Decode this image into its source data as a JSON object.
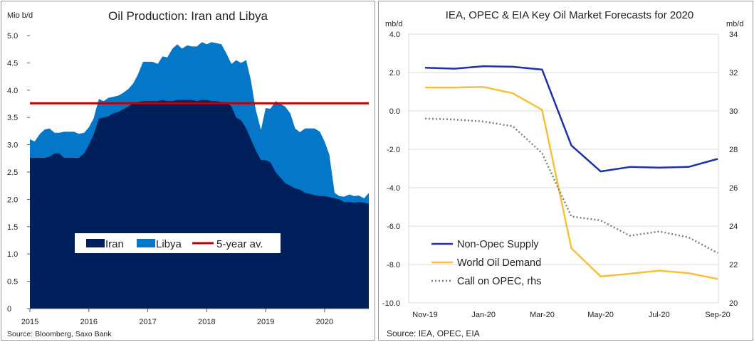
{
  "chart_data": [
    {
      "type": "area",
      "title": "Oil Production: Iran and Libya",
      "ylabel": "Mio b/d",
      "ylim": [
        0,
        5.0
      ],
      "yticks": [
        "0",
        "0.5",
        "1.0",
        "1.5",
        "2.0",
        "2.5",
        "3.0",
        "3.5",
        "4.0",
        "4.5",
        "5.0"
      ],
      "xlim": [
        2015,
        2020.75
      ],
      "xticks": [
        "2015",
        "2016",
        "2017",
        "2018",
        "2019",
        "2020"
      ],
      "stacked": true,
      "legend_position": "bottom-center",
      "x": [
        2015.0,
        2015.08,
        2015.17,
        2015.25,
        2015.33,
        2015.42,
        2015.5,
        2015.58,
        2015.67,
        2015.75,
        2015.83,
        2015.92,
        2016.0,
        2016.08,
        2016.17,
        2016.25,
        2016.33,
        2016.42,
        2016.5,
        2016.58,
        2016.67,
        2016.75,
        2016.83,
        2016.92,
        2017.0,
        2017.08,
        2017.17,
        2017.25,
        2017.33,
        2017.42,
        2017.5,
        2017.58,
        2017.67,
        2017.75,
        2017.83,
        2017.92,
        2018.0,
        2018.08,
        2018.17,
        2018.25,
        2018.33,
        2018.42,
        2018.5,
        2018.58,
        2018.67,
        2018.75,
        2018.83,
        2018.92,
        2019.0,
        2019.08,
        2019.17,
        2019.25,
        2019.33,
        2019.42,
        2019.5,
        2019.58,
        2019.67,
        2019.75,
        2019.83,
        2019.92,
        2020.0,
        2020.08,
        2020.17,
        2020.25,
        2020.33,
        2020.42,
        2020.5,
        2020.58,
        2020.67,
        2020.75
      ],
      "series": [
        {
          "name": "Iran",
          "values": [
            2.76,
            2.76,
            2.76,
            2.76,
            2.78,
            2.84,
            2.84,
            2.76,
            2.76,
            2.76,
            2.76,
            2.84,
            3.0,
            3.18,
            3.48,
            3.5,
            3.52,
            3.58,
            3.6,
            3.65,
            3.7,
            3.76,
            3.78,
            3.8,
            3.8,
            3.8,
            3.8,
            3.82,
            3.8,
            3.8,
            3.82,
            3.82,
            3.82,
            3.82,
            3.8,
            3.82,
            3.82,
            3.8,
            3.8,
            3.78,
            3.78,
            3.7,
            3.5,
            3.45,
            3.3,
            3.1,
            2.9,
            2.72,
            2.72,
            2.68,
            2.5,
            2.4,
            2.3,
            2.25,
            2.2,
            2.18,
            2.12,
            2.1,
            2.08,
            2.06,
            2.06,
            2.04,
            2.02,
            2.0,
            1.95,
            1.95,
            1.94,
            1.95,
            1.94,
            1.92
          ]
        },
        {
          "name": "Libya",
          "values": [
            0.34,
            0.3,
            0.44,
            0.52,
            0.52,
            0.38,
            0.38,
            0.48,
            0.48,
            0.48,
            0.44,
            0.38,
            0.32,
            0.3,
            0.36,
            0.3,
            0.34,
            0.3,
            0.3,
            0.3,
            0.32,
            0.36,
            0.5,
            0.72,
            0.72,
            0.72,
            0.68,
            0.8,
            0.8,
            0.96,
            1.02,
            0.94,
            1.0,
            0.98,
            1.0,
            1.06,
            1.02,
            1.08,
            1.06,
            1.06,
            0.9,
            0.78,
            1.05,
            1.05,
            1.25,
            1.08,
            0.75,
            0.55,
            0.95,
            0.98,
            1.3,
            1.35,
            1.4,
            1.32,
            1.1,
            1.05,
            1.18,
            1.2,
            1.22,
            1.18,
            1.0,
            0.78,
            0.1,
            0.06,
            0.1,
            0.14,
            0.12,
            0.12,
            0.08,
            0.2
          ]
        }
      ],
      "reference_line": {
        "name": "5-year av.",
        "value": 3.76,
        "color": "#c00000"
      },
      "colors": {
        "Iran": "#00205b",
        "Libya": "#0477c8"
      },
      "source": "Source: Bloomberg, Saxo Bank"
    },
    {
      "type": "line",
      "title": "IEA, OPEC & EIA Key  Oil Market Forecasts for 2020",
      "ylabel_left": "mb/d",
      "ylabel_right": "mb/d",
      "ylim_left": [
        -10.0,
        4.0
      ],
      "yticks_left": [
        "-10.0",
        "-8.0",
        "-6.0",
        "-4.0",
        "-2.0",
        "0.0",
        "2.0",
        "4.0"
      ],
      "ylim_right": [
        20,
        34
      ],
      "yticks_right": [
        "20",
        "22",
        "24",
        "26",
        "28",
        "30",
        "32",
        "34"
      ],
      "categories": [
        "Nov-19",
        "Dec-19",
        "Jan-20",
        "Feb-20",
        "Mar-20",
        "Apr-20",
        "May-20",
        "Jun-20",
        "Jul-20",
        "Aug-20",
        "Sep-20"
      ],
      "xtick_labels": [
        "Nov-19",
        "Jan-20",
        "Mar-20",
        "May-20",
        "Jul-20",
        "Sep-20"
      ],
      "legend_position": "bottom-left",
      "series": [
        {
          "name": "Non-Opec Supply",
          "axis": "left",
          "color": "#1f2fa8",
          "style": "solid",
          "values": [
            2.25,
            2.2,
            2.33,
            2.3,
            2.15,
            -1.8,
            -3.15,
            -2.92,
            -2.95,
            -2.92,
            -2.5
          ]
        },
        {
          "name": "World Oil Demand",
          "axis": "left",
          "color": "#f9bf3b",
          "style": "solid",
          "values": [
            1.22,
            1.22,
            1.25,
            0.92,
            0.05,
            -7.15,
            -8.62,
            -8.48,
            -8.32,
            -8.45,
            -8.75
          ]
        },
        {
          "name": "Call on OPEC, rhs",
          "axis": "right",
          "color": "#7f7f7f",
          "style": "dotted",
          "values": [
            29.6,
            29.55,
            29.45,
            29.2,
            27.8,
            24.5,
            24.3,
            23.5,
            23.72,
            23.42,
            22.6
          ]
        }
      ],
      "source": "Source: IEA, OPEC, EIA"
    }
  ]
}
